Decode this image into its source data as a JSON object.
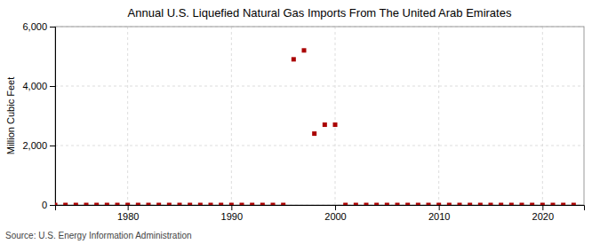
{
  "chart_data": {
    "type": "scatter",
    "title": "Annual U.S. Liquefied Natural Gas Imports From The United Arab Emirates",
    "ylabel": "Million Cubic Feet",
    "annotation": "Source: U.S. Energy Information Administration",
    "x": [
      1973,
      1974,
      1975,
      1976,
      1977,
      1978,
      1979,
      1980,
      1981,
      1982,
      1983,
      1984,
      1985,
      1986,
      1987,
      1988,
      1989,
      1990,
      1991,
      1992,
      1993,
      1994,
      1995,
      1996,
      1997,
      1998,
      1999,
      2000,
      2001,
      2002,
      2003,
      2004,
      2005,
      2006,
      2007,
      2008,
      2009,
      2010,
      2011,
      2012,
      2013,
      2014,
      2015,
      2016,
      2017,
      2018,
      2019,
      2020,
      2021,
      2022,
      2023
    ],
    "values": [
      0,
      0,
      0,
      0,
      0,
      0,
      0,
      0,
      0,
      0,
      0,
      0,
      0,
      0,
      0,
      0,
      0,
      0,
      0,
      0,
      0,
      0,
      0,
      4900,
      5200,
      2400,
      2700,
      2700,
      0,
      0,
      0,
      0,
      0,
      0,
      0,
      0,
      0,
      0,
      0,
      0,
      0,
      0,
      0,
      0,
      0,
      0,
      0,
      0,
      0,
      0,
      0
    ],
    "color": "#aa0000",
    "marker": "square",
    "xlim": [
      1973,
      2024
    ],
    "xticks": [
      1980,
      1990,
      2000,
      2010,
      2020
    ],
    "ylim": [
      0,
      6000
    ],
    "yticks": [
      0,
      {
        "value": 2000,
        "label": "2,000"
      },
      {
        "value": 4000,
        "label": "4,000"
      },
      {
        "value": 6000,
        "label": "6,000"
      }
    ],
    "grid": true
  }
}
